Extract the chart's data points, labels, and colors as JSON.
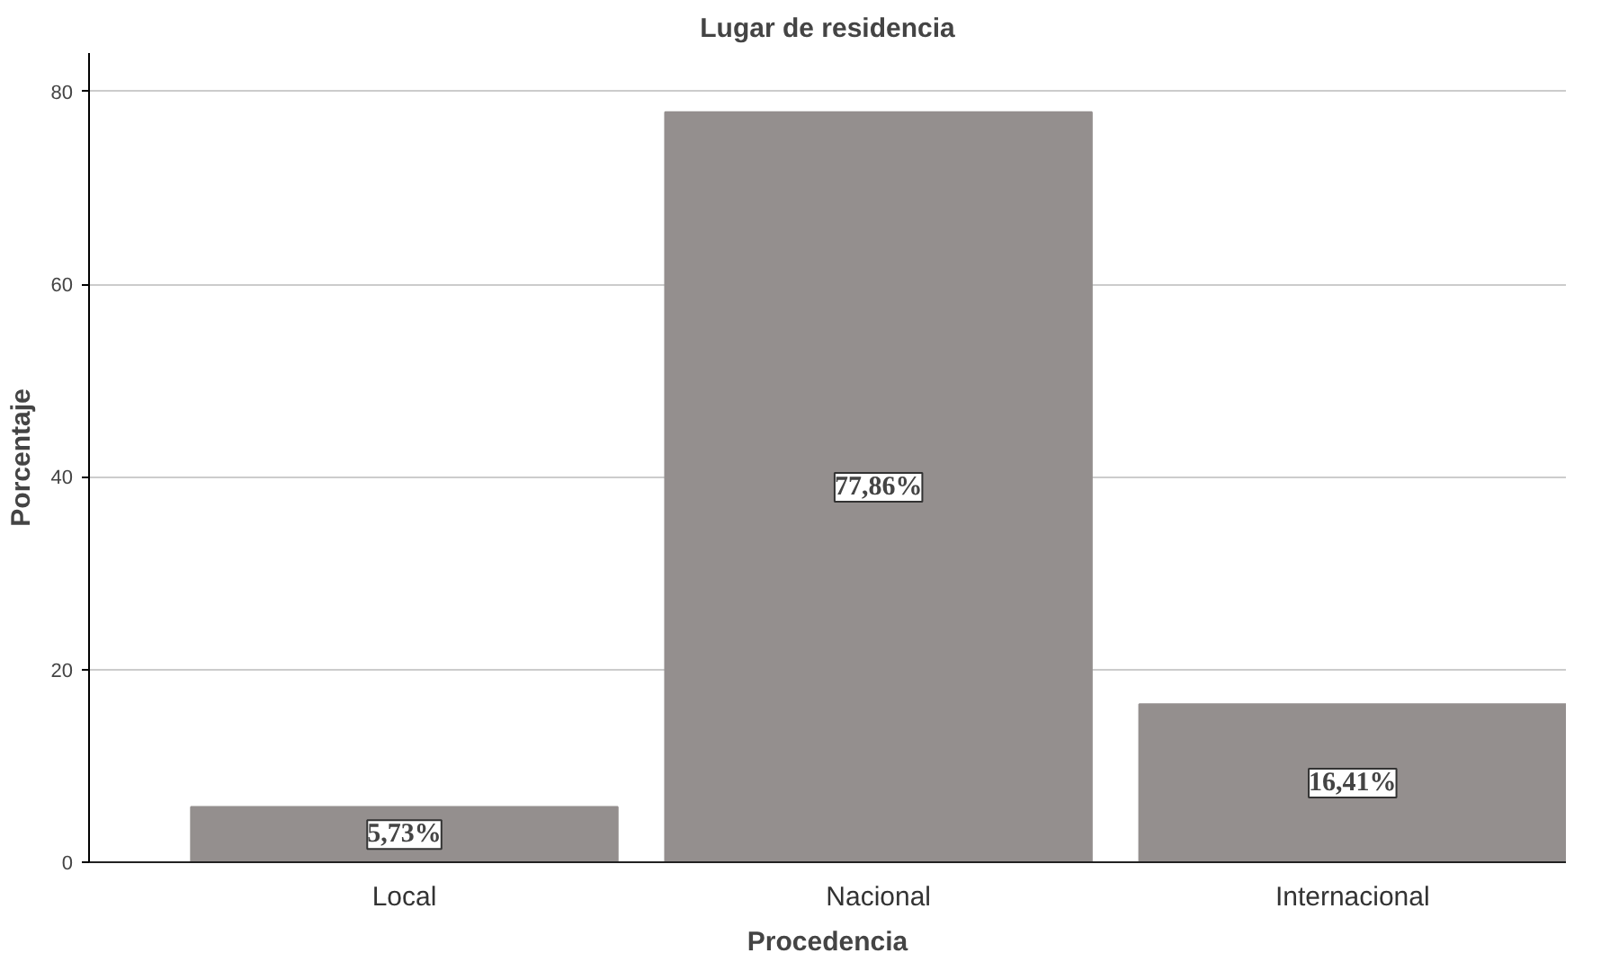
{
  "chart_data": {
    "type": "bar",
    "title": "Lugar de residencia",
    "xlabel": "Procedencia",
    "ylabel": "Porcentaje",
    "categories": [
      "Local",
      "Nacional",
      "Internacional"
    ],
    "values": [
      5.73,
      77.86,
      16.41
    ],
    "value_labels": [
      "5,73%",
      "77,86%",
      "16,41%"
    ],
    "color": "#948f8e",
    "ylim": [
      0,
      84
    ],
    "yticks": [
      0,
      20,
      40,
      60,
      80
    ],
    "grid": "y"
  }
}
